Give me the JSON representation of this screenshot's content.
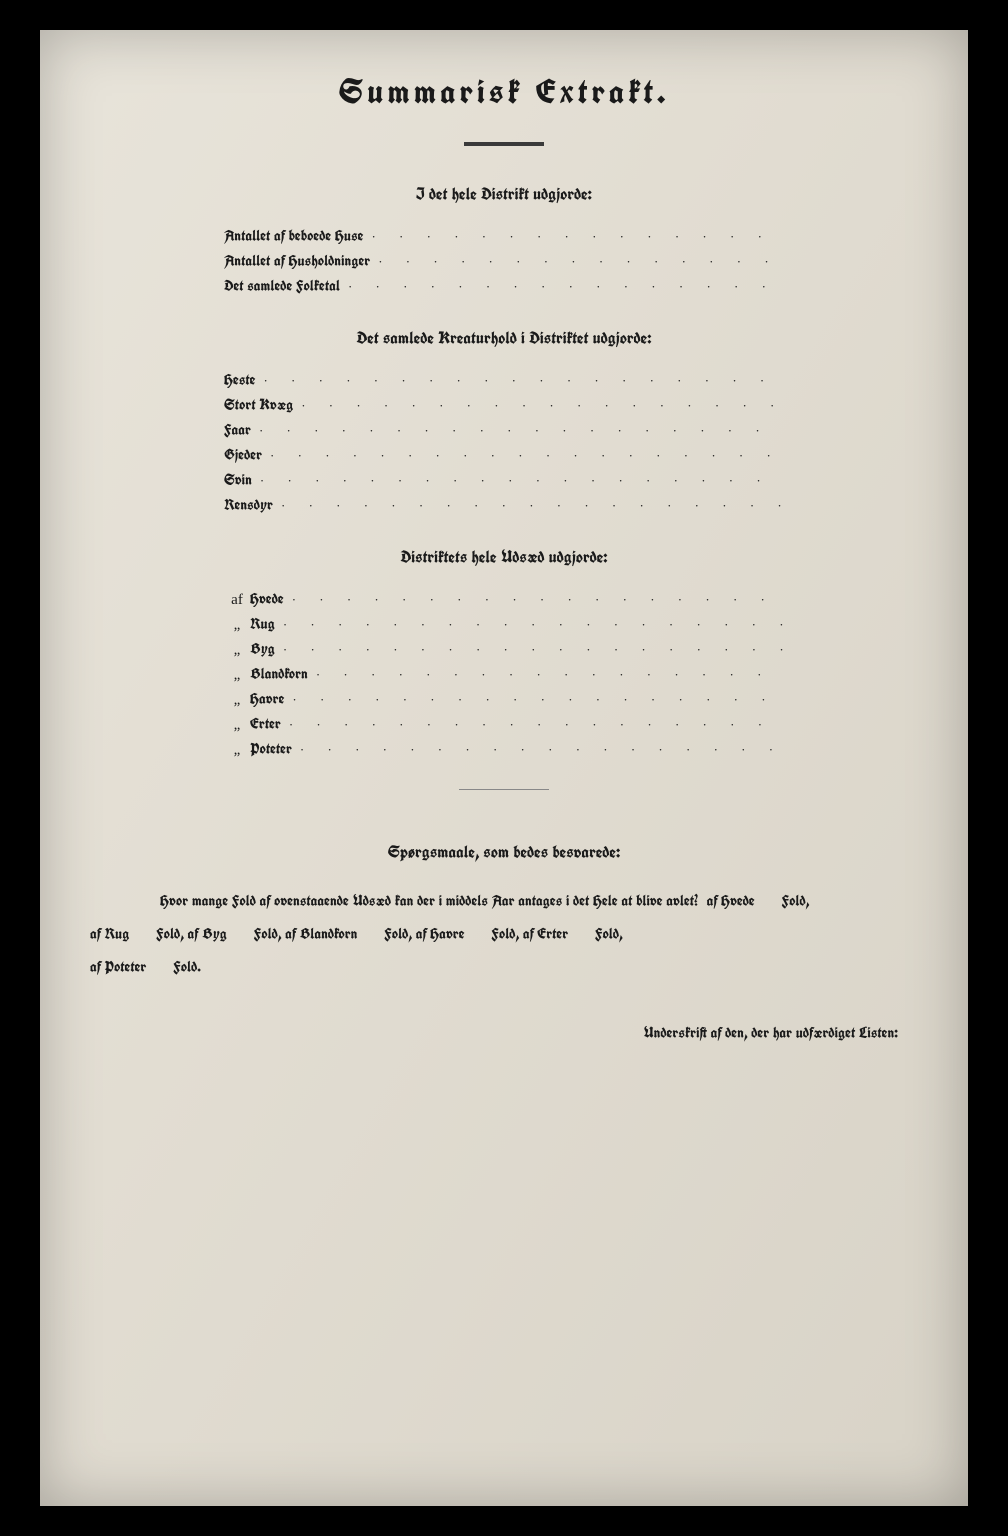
{
  "colors": {
    "paper_bg": "#e2ddd2",
    "ink": "#1a1a1a",
    "outer": "#000000",
    "rule": "#3a3a3a"
  },
  "title": "Summarisk Extrakt.",
  "section1": {
    "heading": "I det hele Distrikt udgjorde:",
    "rows": [
      "Antallet af beboede Huse",
      "Antallet af Husholdninger",
      "Det samlede Folketal"
    ]
  },
  "section2": {
    "heading": "Det samlede Kreaturhold i Distriktet udgjorde:",
    "rows": [
      "Heste",
      "Stort Kvæg",
      "Faar",
      "Gjeder",
      "Svin",
      "Rensdyr"
    ]
  },
  "section3": {
    "heading": "Distriktets hele Udsæd udgjorde:",
    "first_prefix": "af",
    "ditto": "„",
    "rows": [
      "Hvede",
      "Rug",
      "Byg",
      "Blandkorn",
      "Havre",
      "Erter",
      "Poteter"
    ]
  },
  "questions": {
    "heading": "Spørgsmaale, som bedes besvarede:",
    "lead": "Hvor mange Fold af ovenstaaende Udsæd kan der i middels Aar antages i det Hele at blive avlet?",
    "items": [
      "af Hvede",
      "Fold,",
      "af Rug",
      "Fold, af Byg",
      "Fold, af Blandkorn",
      "Fold, af Havre",
      "Fold, af Erter",
      "Fold,",
      "af Poteter",
      "Fold."
    ]
  },
  "signature": "Underskrift af den, der har udfærdiget Listen:"
}
